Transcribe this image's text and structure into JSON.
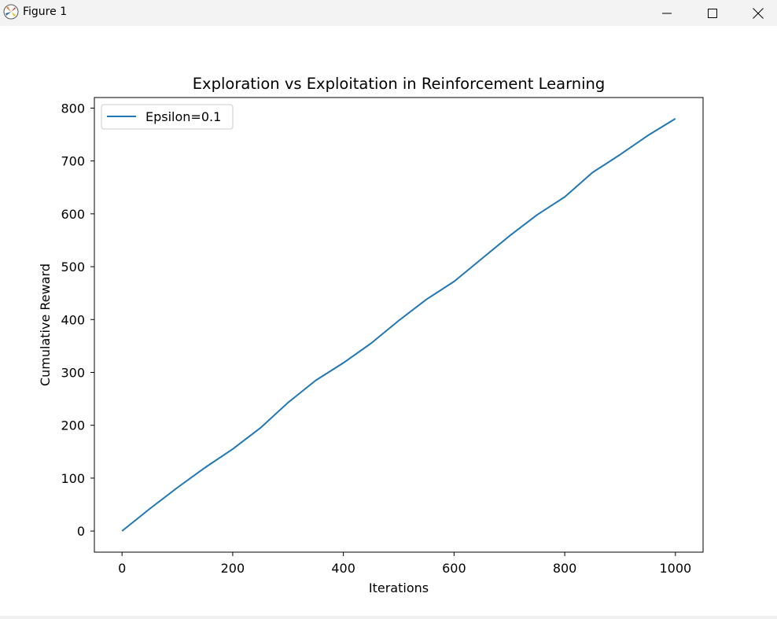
{
  "window": {
    "title": "Figure 1",
    "app_icon": "matplotlib-icon",
    "controls": {
      "minimize": "minimize-icon",
      "maximize": "maximize-icon",
      "close": "close-icon"
    }
  },
  "chart_data": {
    "type": "line",
    "title": "Exploration vs Exploitation in Reinforcement Learning",
    "xlabel": "Iterations",
    "ylabel": "Cumulative Reward",
    "xlim": [
      -50,
      1050
    ],
    "ylim": [
      -40,
      820
    ],
    "xticks": [
      0,
      200,
      400,
      600,
      800,
      1000
    ],
    "yticks": [
      0,
      100,
      200,
      300,
      400,
      500,
      600,
      700,
      800
    ],
    "grid": false,
    "legend": {
      "placement": "upper left"
    },
    "series": [
      {
        "name": "Epsilon=0.1",
        "color": "#1f77b4",
        "x": [
          0,
          50,
          100,
          150,
          200,
          250,
          300,
          350,
          400,
          450,
          500,
          550,
          600,
          650,
          700,
          750,
          800,
          850,
          900,
          950,
          1000
        ],
        "y": [
          0,
          42,
          82,
          120,
          155,
          195,
          243,
          285,
          318,
          355,
          398,
          438,
          472,
          515,
          558,
          598,
          632,
          678,
          712,
          748,
          780
        ]
      }
    ]
  }
}
